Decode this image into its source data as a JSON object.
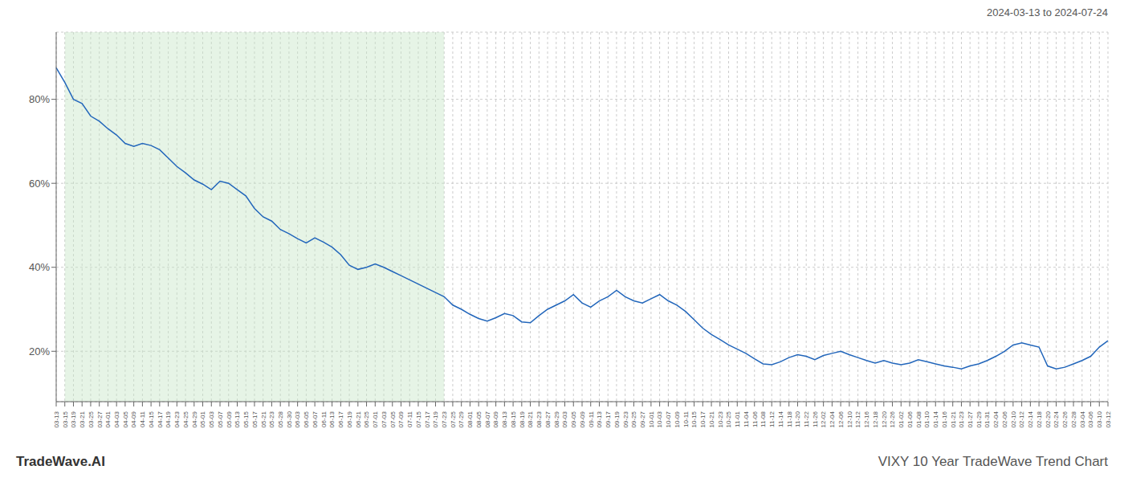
{
  "chart_data": {
    "type": "line",
    "title": "VIXY 10 Year TradeWave Trend Chart",
    "subtitle": "2024-03-13 to 2024-07-24",
    "annotations": [
      "TradeWave.AI"
    ],
    "color": "#2266bb",
    "grid": true,
    "ylim": [
      0.08,
      0.96
    ],
    "yticks": [
      {
        "value": 0.2,
        "label": "20%"
      },
      {
        "value": 0.4,
        "label": "40%"
      },
      {
        "value": 0.6,
        "label": "60%"
      },
      {
        "value": 0.8,
        "label": "80%"
      }
    ],
    "shaded_region": {
      "start": "03-15",
      "end": "07-23",
      "color": "#c8e6c8"
    },
    "categories": [
      "03-13",
      "03-15",
      "03-19",
      "03-21",
      "03-25",
      "03-27",
      "04-01",
      "04-03",
      "04-05",
      "04-09",
      "04-11",
      "04-15",
      "04-17",
      "04-19",
      "04-23",
      "04-25",
      "04-29",
      "05-01",
      "05-03",
      "05-07",
      "05-09",
      "05-13",
      "05-15",
      "05-17",
      "05-21",
      "05-23",
      "05-28",
      "05-30",
      "06-03",
      "06-05",
      "06-07",
      "06-11",
      "06-13",
      "06-17",
      "06-19",
      "06-21",
      "06-25",
      "07-01",
      "07-03",
      "07-05",
      "07-09",
      "07-11",
      "07-15",
      "07-17",
      "07-19",
      "07-23",
      "07-25",
      "07-29",
      "08-01",
      "08-05",
      "08-07",
      "08-09",
      "08-13",
      "08-15",
      "08-19",
      "08-21",
      "08-23",
      "08-27",
      "08-29",
      "09-03",
      "09-05",
      "09-09",
      "09-11",
      "09-13",
      "09-17",
      "09-19",
      "09-23",
      "09-25",
      "09-27",
      "10-01",
      "10-03",
      "10-07",
      "10-09",
      "10-11",
      "10-15",
      "10-17",
      "10-21",
      "10-23",
      "10-25",
      "11-01",
      "11-04",
      "11-06",
      "11-08",
      "11-12",
      "11-14",
      "11-18",
      "11-20",
      "11-22",
      "11-26",
      "12-02",
      "12-04",
      "12-06",
      "12-10",
      "12-12",
      "12-16",
      "12-18",
      "12-20",
      "12-26",
      "01-02",
      "01-06",
      "01-08",
      "01-10",
      "01-14",
      "01-16",
      "01-21",
      "01-23",
      "01-27",
      "01-29",
      "01-31",
      "02-04",
      "02-06",
      "02-10",
      "02-12",
      "02-14",
      "02-18",
      "02-20",
      "02-24",
      "02-26",
      "02-28",
      "03-04",
      "03-06",
      "03-10",
      "03-12"
    ],
    "values": [
      0.875,
      0.84,
      0.8,
      0.79,
      0.76,
      0.748,
      0.73,
      0.715,
      0.695,
      0.688,
      0.695,
      0.69,
      0.68,
      0.66,
      0.64,
      0.625,
      0.608,
      0.598,
      0.585,
      0.605,
      0.6,
      0.585,
      0.57,
      0.54,
      0.52,
      0.51,
      0.49,
      0.48,
      0.468,
      0.458,
      0.47,
      0.46,
      0.448,
      0.43,
      0.405,
      0.395,
      0.4,
      0.408,
      0.4,
      0.39,
      0.38,
      0.37,
      0.36,
      0.35,
      0.34,
      0.33,
      0.31,
      0.3,
      0.288,
      0.278,
      0.272,
      0.28,
      0.29,
      0.285,
      0.27,
      0.268,
      0.285,
      0.3,
      0.31,
      0.32,
      0.335,
      0.315,
      0.305,
      0.32,
      0.33,
      0.345,
      0.33,
      0.32,
      0.315,
      0.325,
      0.335,
      0.32,
      0.31,
      0.295,
      0.275,
      0.255,
      0.24,
      0.228,
      0.215,
      0.205,
      0.195,
      0.182,
      0.17,
      0.168,
      0.175,
      0.185,
      0.192,
      0.188,
      0.18,
      0.19,
      0.195,
      0.2,
      0.192,
      0.185,
      0.178,
      0.172,
      0.178,
      0.172,
      0.168,
      0.172,
      0.18,
      0.175,
      0.17,
      0.165,
      0.162,
      0.158,
      0.165,
      0.17,
      0.178,
      0.188,
      0.2,
      0.215,
      0.22,
      0.215,
      0.21,
      0.165,
      0.158,
      0.162,
      0.17,
      0.178,
      0.188,
      0.21,
      0.225
    ]
  }
}
